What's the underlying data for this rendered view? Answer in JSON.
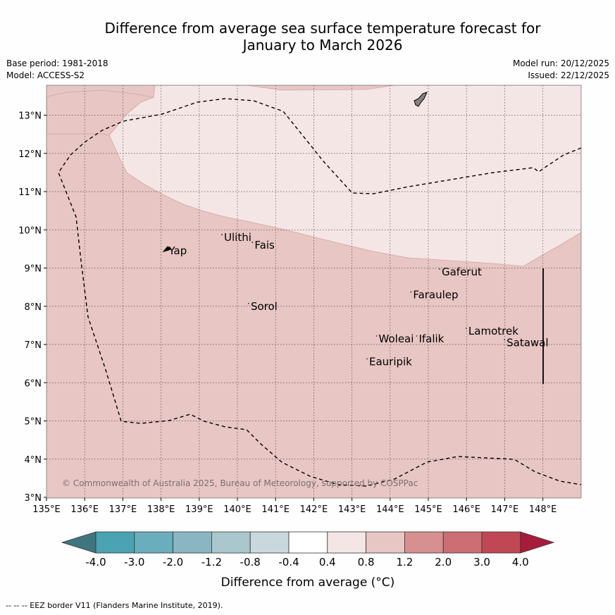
{
  "header": {
    "title_line1": "Difference from average sea surface temperature forecast for",
    "title_line2": "January to March 2026",
    "base_period": "Base period: 1981-2018",
    "model": "Model: ACCESS-S2",
    "model_run": "Model run: 20/12/2025",
    "issued": "Issued: 22/12/2025"
  },
  "map": {
    "lon_range": [
      135,
      149
    ],
    "lat_range": [
      3,
      13.8
    ],
    "lon_ticks": [
      "135°E",
      "136°E",
      "137°E",
      "138°E",
      "139°E",
      "140°E",
      "141°E",
      "142°E",
      "143°E",
      "144°E",
      "145°E",
      "146°E",
      "147°E",
      "148°E"
    ],
    "lat_ticks": [
      "3°N",
      "4°N",
      "5°N",
      "6°N",
      "7°N",
      "8°N",
      "9°N",
      "10°N",
      "11°N",
      "12°N",
      "13°N"
    ],
    "copyright": "© Commonwealth of Australia 2025, Bureau of Meteorology, supported by COSPPac",
    "places": [
      {
        "name": "Yap",
        "lon": 138.2,
        "lat": 9.45
      },
      {
        "name": "Ulithi",
        "lon": 139.65,
        "lat": 9.8
      },
      {
        "name": "Fais",
        "lon": 140.45,
        "lat": 9.6
      },
      {
        "name": "Gaferut",
        "lon": 145.35,
        "lat": 8.9
      },
      {
        "name": "Faraulep",
        "lon": 144.6,
        "lat": 8.3
      },
      {
        "name": "Sorol",
        "lon": 140.35,
        "lat": 8.0
      },
      {
        "name": "Woleai",
        "lon": 143.7,
        "lat": 7.15
      },
      {
        "name": "Ifalik",
        "lon": 144.75,
        "lat": 7.15
      },
      {
        "name": "Lamotrek",
        "lon": 146.05,
        "lat": 7.35
      },
      {
        "name": "Satawal",
        "lon": 147.05,
        "lat": 7.05
      },
      {
        "name": "Eauripik",
        "lon": 143.45,
        "lat": 6.55
      }
    ],
    "fill_colors": {
      "band_0.8_1.2": "#e7c6c3",
      "band_0.4_0.8": "#f4e6e5"
    }
  },
  "legend": {
    "colors": [
      "#3f7580",
      "#4aa2b3",
      "#6aaebd",
      "#89b6c2",
      "#a9c7cd",
      "#c9d8dc",
      "#ffffff",
      "#f4e6e5",
      "#e7c6c3",
      "#d6908f",
      "#cc6e74",
      "#c04855",
      "#a51d3a"
    ],
    "labels": [
      "-4.0",
      "-3.0",
      "-2.0",
      "-1.2",
      "-0.8",
      "-0.4",
      "0.4",
      "0.8",
      "1.2",
      "2.0",
      "3.0",
      "4.0"
    ],
    "axis_label": "Difference from average (°C)"
  },
  "footnote": "-- -- -- EEZ border V11 (Flanders Marine Institute, 2019)."
}
